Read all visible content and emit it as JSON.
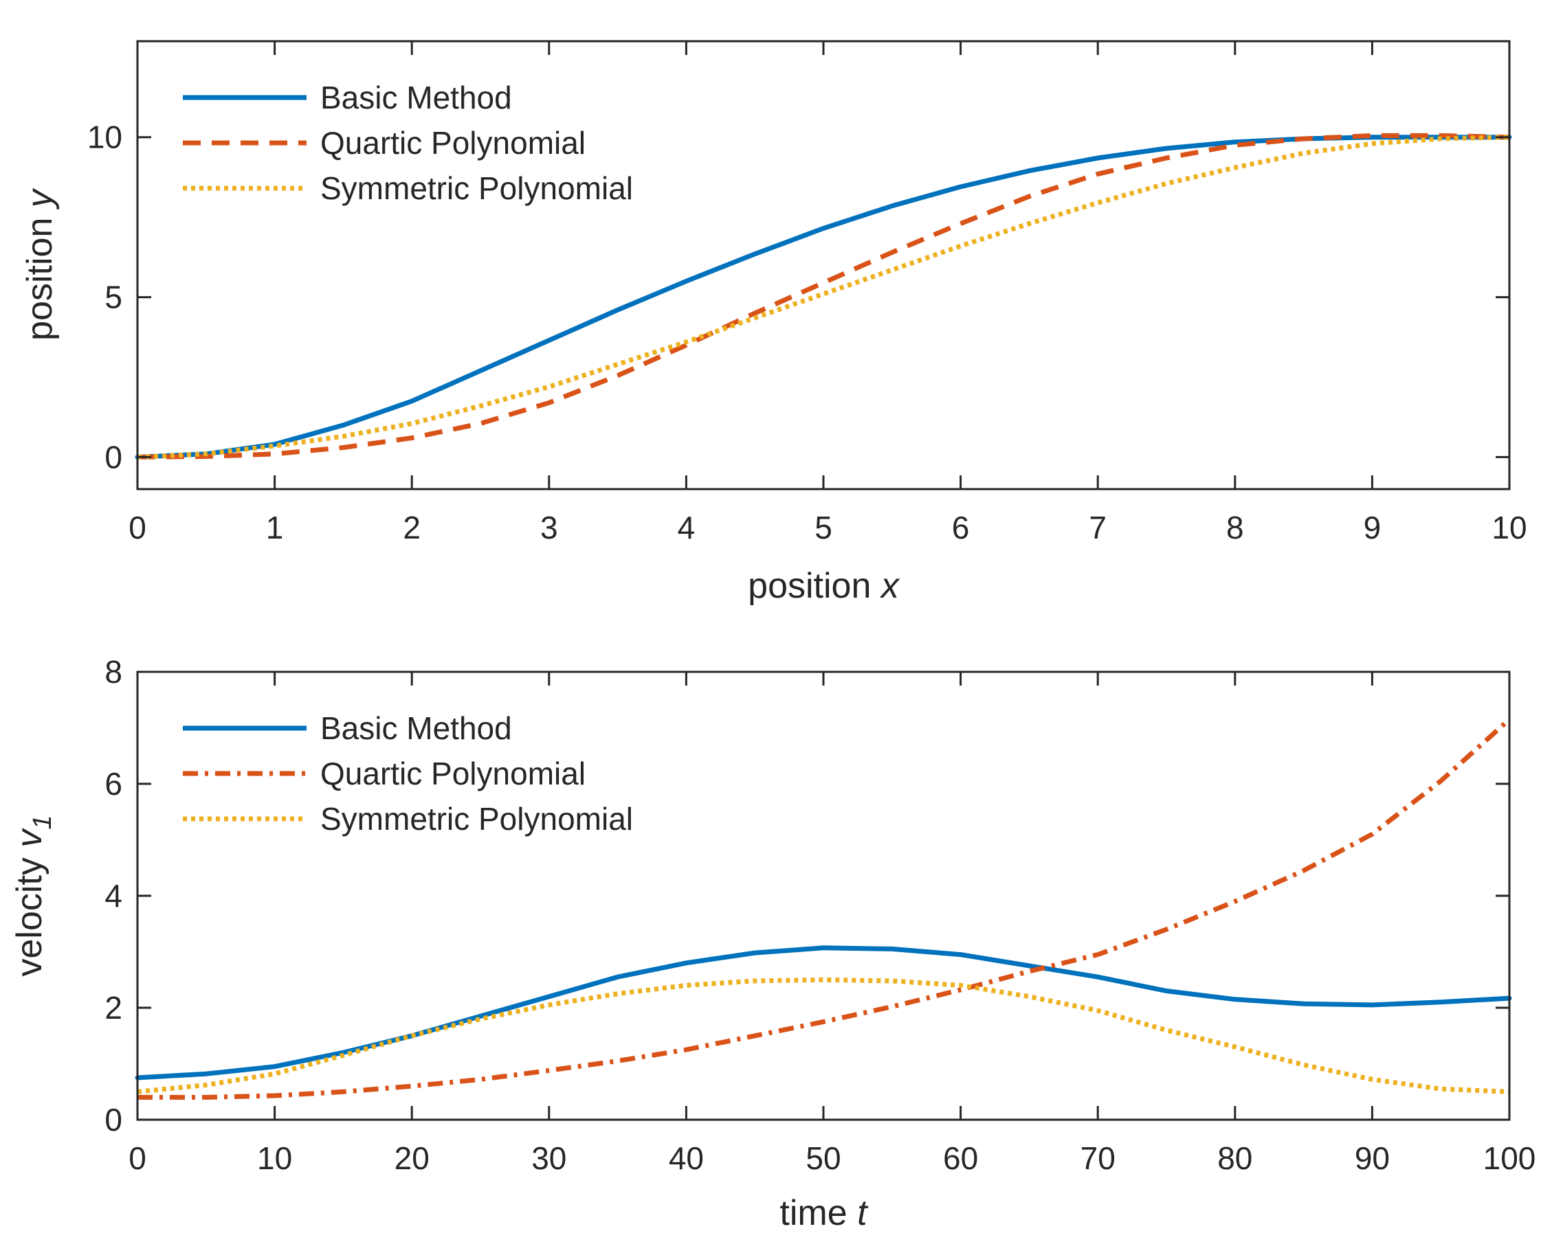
{
  "colors": {
    "blue": "#0072BD",
    "orange": "#D95319",
    "yellow": "#EDB120",
    "axis": "#262626"
  },
  "chart_data": [
    {
      "type": "line",
      "xlabel": "position",
      "xlabel_var": "x",
      "ylabel": "position",
      "ylabel_var": "y",
      "xlim": [
        0,
        10
      ],
      "ylim": [
        -1,
        13
      ],
      "xticks": [
        0,
        1,
        2,
        3,
        4,
        5,
        6,
        7,
        8,
        9,
        10
      ],
      "yticks": [
        0,
        5,
        10
      ],
      "legend_location": "top-left",
      "series": [
        {
          "name": "Basic Method",
          "style": "solid",
          "color": "#0072BD",
          "x": [
            0,
            0.5,
            1,
            1.5,
            2,
            2.5,
            3,
            3.5,
            4,
            4.5,
            5,
            5.5,
            6,
            6.5,
            7,
            7.5,
            8,
            8.5,
            9,
            9.5,
            10
          ],
          "y": [
            0,
            0.1,
            0.4,
            1.0,
            1.75,
            2.7,
            3.65,
            4.6,
            5.5,
            6.35,
            7.15,
            7.85,
            8.45,
            8.95,
            9.35,
            9.65,
            9.85,
            9.95,
            10,
            10,
            10
          ]
        },
        {
          "name": "Quartic Polynomial",
          "style": "dashed",
          "color": "#D95319",
          "x": [
            0,
            0.5,
            1,
            1.5,
            2,
            2.5,
            3,
            3.5,
            4,
            4.5,
            5,
            5.5,
            6,
            6.5,
            7,
            7.5,
            8,
            8.5,
            9,
            9.5,
            10
          ],
          "y": [
            0,
            0.02,
            0.1,
            0.3,
            0.6,
            1.05,
            1.7,
            2.55,
            3.5,
            4.5,
            5.45,
            6.4,
            7.3,
            8.15,
            8.85,
            9.35,
            9.75,
            9.95,
            10.05,
            10.05,
            10
          ]
        },
        {
          "name": "Symmetric Polynomial",
          "style": "dotted",
          "color": "#EDB120",
          "x": [
            0,
            0.5,
            1,
            1.5,
            2,
            2.5,
            3,
            3.5,
            4,
            4.5,
            5,
            5.5,
            6,
            6.5,
            7,
            7.5,
            8,
            8.5,
            9,
            9.5,
            10
          ],
          "y": [
            0,
            0.1,
            0.35,
            0.65,
            1.05,
            1.6,
            2.2,
            2.9,
            3.6,
            4.35,
            5.1,
            5.85,
            6.6,
            7.3,
            7.95,
            8.55,
            9.05,
            9.5,
            9.8,
            9.95,
            10
          ]
        }
      ]
    },
    {
      "type": "line",
      "xlabel": "time",
      "xlabel_var": "t",
      "ylabel": "velocity",
      "ylabel_var": "v",
      "ylabel_sub": "1",
      "xlim": [
        0,
        100
      ],
      "ylim": [
        0,
        8
      ],
      "xticks": [
        0,
        10,
        20,
        30,
        40,
        50,
        60,
        70,
        80,
        90,
        100
      ],
      "yticks": [
        0,
        2,
        4,
        6,
        8
      ],
      "legend_location": "top-left",
      "series": [
        {
          "name": "Basic Method",
          "style": "solid",
          "color": "#0072BD",
          "x": [
            0,
            5,
            10,
            15,
            20,
            25,
            30,
            35,
            40,
            45,
            50,
            55,
            60,
            65,
            70,
            75,
            80,
            85,
            90,
            95,
            100
          ],
          "y": [
            0.75,
            0.82,
            0.95,
            1.2,
            1.5,
            1.85,
            2.2,
            2.55,
            2.8,
            2.98,
            3.07,
            3.05,
            2.95,
            2.75,
            2.55,
            2.3,
            2.15,
            2.07,
            2.05,
            2.1,
            2.17
          ]
        },
        {
          "name": "Quartic Polynomial",
          "style": "dashdot",
          "color": "#D95319",
          "x": [
            0,
            5,
            10,
            15,
            20,
            25,
            30,
            35,
            40,
            45,
            50,
            55,
            60,
            65,
            70,
            75,
            80,
            85,
            90,
            95,
            100
          ],
          "y": [
            0.4,
            0.4,
            0.43,
            0.5,
            0.6,
            0.72,
            0.88,
            1.05,
            1.25,
            1.5,
            1.75,
            2.02,
            2.32,
            2.65,
            2.95,
            3.4,
            3.9,
            4.45,
            5.1,
            6.05,
            7.15
          ]
        },
        {
          "name": "Symmetric Polynomial",
          "style": "dotted",
          "color": "#EDB120",
          "x": [
            0,
            5,
            10,
            15,
            20,
            25,
            30,
            35,
            40,
            45,
            50,
            55,
            60,
            65,
            70,
            75,
            80,
            85,
            90,
            95,
            100
          ],
          "y": [
            0.5,
            0.62,
            0.82,
            1.15,
            1.5,
            1.8,
            2.05,
            2.25,
            2.4,
            2.48,
            2.5,
            2.48,
            2.4,
            2.2,
            1.95,
            1.6,
            1.3,
            0.98,
            0.72,
            0.55,
            0.5
          ]
        }
      ]
    }
  ]
}
